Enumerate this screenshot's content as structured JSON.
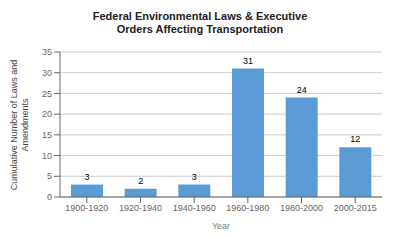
{
  "chart_data": {
    "type": "bar",
    "title": "Federal Environmental Laws & Executive\nOrders Affecting Transportation",
    "xlabel": "Year",
    "ylabel": "Cumulative Number of Laws and\nAmendments",
    "categories": [
      "1900-1920",
      "1920-1940",
      "1940-1960",
      "1960-1980",
      "1980-2000",
      "2000-2015"
    ],
    "values": [
      3,
      2,
      3,
      31,
      24,
      12
    ],
    "color": "#5B9BD5",
    "ylim": [
      0,
      35
    ],
    "yticks": [
      0,
      5,
      10,
      15,
      20,
      25,
      30,
      35
    ],
    "grid": true,
    "data_labels": true
  }
}
